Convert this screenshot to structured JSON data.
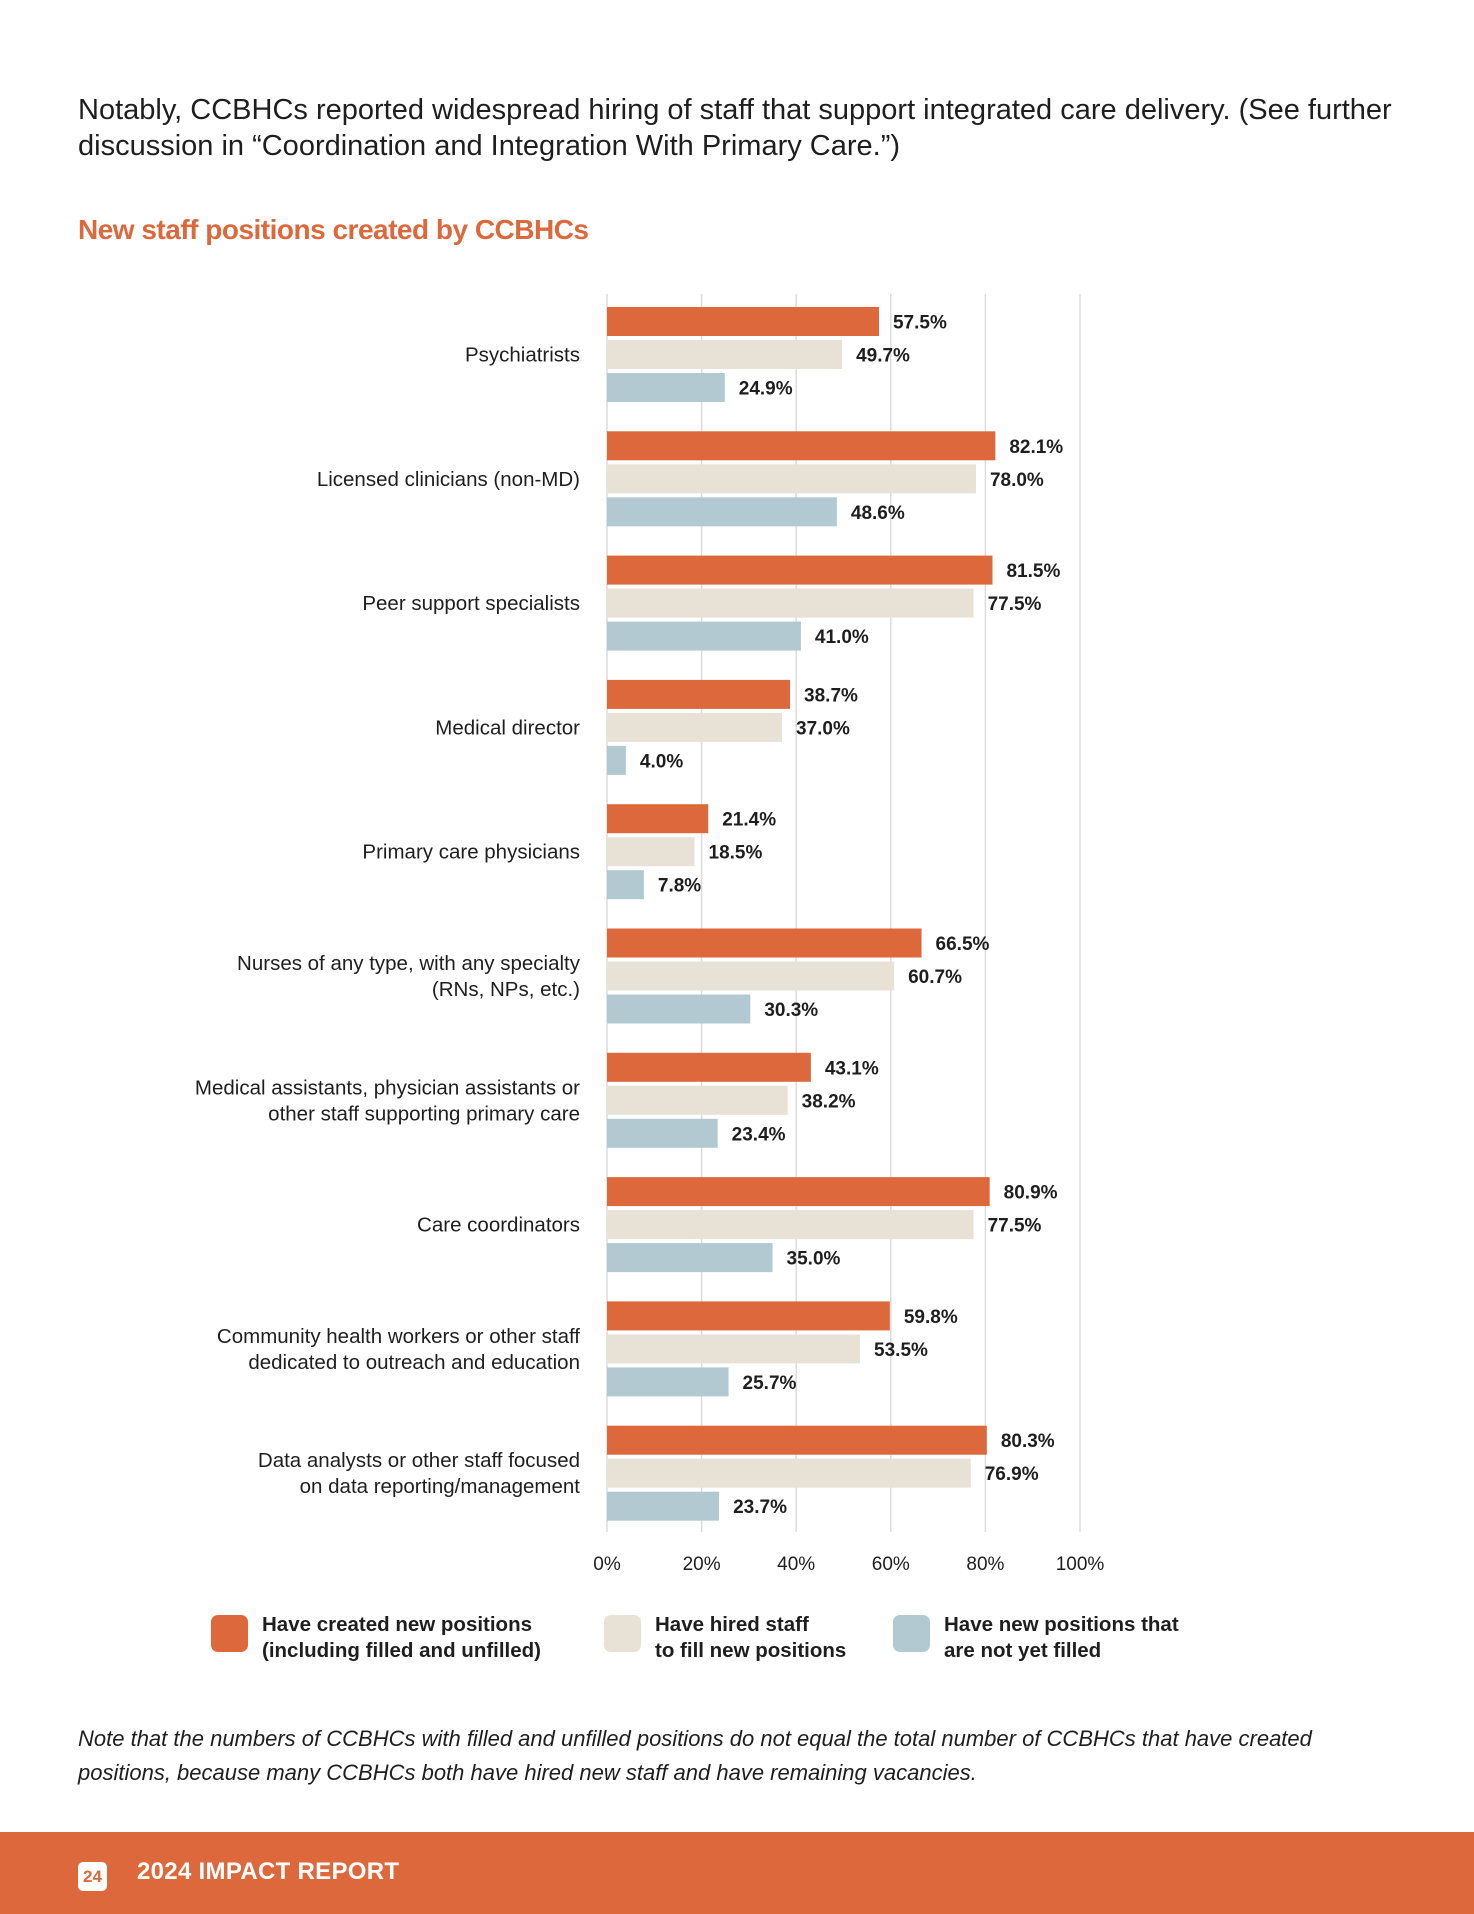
{
  "intro_text": "Notably, CCBHCs reported widespread hiring of staff that support integrated care delivery. (See further discussion in “Coordination and Integration With Primary Care.”)",
  "colors": {
    "accent": "#dd683c",
    "created": "#dd683c",
    "hired": "#e8e1d6",
    "unfilled": "#b2c9d1",
    "grid": "#dcdcdc",
    "footer_bg": "#dd683c"
  },
  "legend": [
    {
      "series": "created",
      "label": "Have created new positions\n(including filled and unfilled)"
    },
    {
      "series": "hired",
      "label": "Have hired staff\nto fill new positions"
    },
    {
      "series": "unfilled",
      "label": "Have new positions that\nare not yet filled"
    }
  ],
  "chart_data": {
    "type": "bar",
    "orientation": "horizontal",
    "title": "New staff positions created by CCBHCs",
    "categories": [
      [
        "Psychiatrists"
      ],
      [
        "Licensed clinicians (non-MD)"
      ],
      [
        "Peer support specialists"
      ],
      [
        "Medical director"
      ],
      [
        "Primary care physicians"
      ],
      [
        "Nurses of any type, with any specialty",
        "(RNs, NPs, etc.)"
      ],
      [
        "Medical assistants, physician assistants or",
        "other staff supporting primary care"
      ],
      [
        "Care coordinators"
      ],
      [
        "Community health workers or other staff",
        "dedicated to outreach and education"
      ],
      [
        "Data analysts or other staff focused",
        "on data reporting/management"
      ]
    ],
    "series": [
      {
        "key": "created",
        "values": [
          57.5,
          82.1,
          81.5,
          38.7,
          21.4,
          66.5,
          43.1,
          80.9,
          59.8,
          80.3
        ]
      },
      {
        "key": "hired",
        "values": [
          49.7,
          78.0,
          77.5,
          37.0,
          18.5,
          60.7,
          38.2,
          77.5,
          53.5,
          76.9
        ]
      },
      {
        "key": "unfilled",
        "values": [
          24.9,
          48.6,
          41.0,
          4.0,
          7.8,
          30.3,
          23.4,
          35.0,
          25.7,
          23.7
        ]
      }
    ],
    "value_suffix": "%",
    "x_ticks": [
      "0%",
      "20%",
      "40%",
      "60%",
      "80%",
      "100%"
    ],
    "xlim": [
      0,
      100
    ],
    "grid": true
  },
  "note": "Note that the numbers of CCBHCs with filled and unfilled positions do not equal the total number of CCBHCs that have created positions, because many CCBHCs both have hired new staff and have remaining vacancies.",
  "footer": {
    "page_number": "24",
    "report_title": "2024 IMPACT REPORT"
  }
}
